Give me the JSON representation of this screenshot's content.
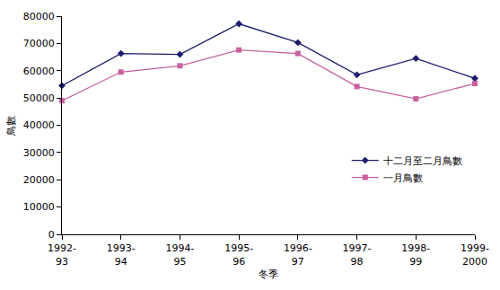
{
  "chart_data": {
    "type": "line",
    "x_label": "冬季",
    "y_label": "鳥數",
    "categories": [
      "1992-93",
      "1993-94",
      "1994-95",
      "1995-96",
      "1996-97",
      "1997-98",
      "1998-99",
      "1999-2000"
    ],
    "series": [
      {
        "name": "十二月至二月鳥數",
        "color": "#1c1c6e",
        "marker": "diamond",
        "values": [
          54500,
          66300,
          66000,
          77200,
          70300,
          58500,
          64500,
          57200
        ]
      },
      {
        "name": "一月鳥數",
        "color": "#c8609e",
        "marker": "square",
        "values": [
          49000,
          59500,
          61800,
          67600,
          66300,
          54200,
          49700,
          55300
        ]
      }
    ],
    "ylim": [
      0,
      80000
    ],
    "yticks": [
      0,
      10000,
      20000,
      30000,
      40000,
      50000,
      60000,
      70000,
      80000
    ],
    "grid": false,
    "legend": "right"
  }
}
